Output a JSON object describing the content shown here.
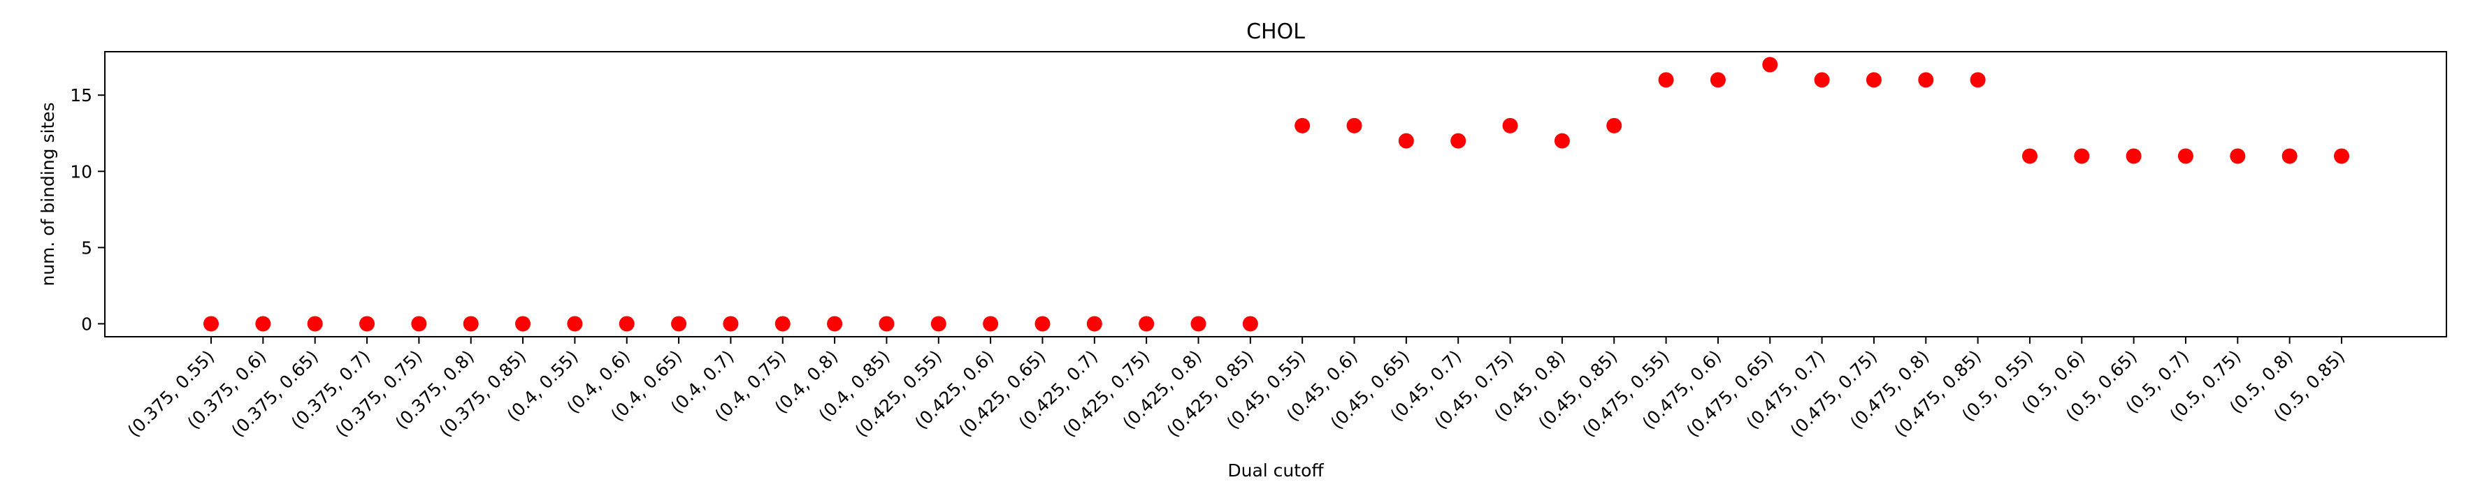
{
  "chart_data": {
    "type": "scatter",
    "title": "CHOL",
    "xlabel": "Dual cutoff",
    "ylabel": "num. of binding sites",
    "categories": [
      "(0.375, 0.55)",
      "(0.375, 0.6)",
      "(0.375, 0.65)",
      "(0.375, 0.7)",
      "(0.375, 0.75)",
      "(0.375, 0.8)",
      "(0.375, 0.85)",
      "(0.4, 0.55)",
      "(0.4, 0.6)",
      "(0.4, 0.65)",
      "(0.4, 0.7)",
      "(0.4, 0.75)",
      "(0.4, 0.8)",
      "(0.4, 0.85)",
      "(0.425, 0.55)",
      "(0.425, 0.6)",
      "(0.425, 0.65)",
      "(0.425, 0.7)",
      "(0.425, 0.75)",
      "(0.425, 0.8)",
      "(0.425, 0.85)",
      "(0.45, 0.55)",
      "(0.45, 0.6)",
      "(0.45, 0.65)",
      "(0.45, 0.7)",
      "(0.45, 0.75)",
      "(0.45, 0.8)",
      "(0.45, 0.85)",
      "(0.475, 0.55)",
      "(0.475, 0.6)",
      "(0.475, 0.65)",
      "(0.475, 0.7)",
      "(0.475, 0.75)",
      "(0.475, 0.8)",
      "(0.475, 0.85)",
      "(0.5, 0.55)",
      "(0.5, 0.6)",
      "(0.5, 0.65)",
      "(0.5, 0.7)",
      "(0.5, 0.75)",
      "(0.5, 0.8)",
      "(0.5, 0.85)"
    ],
    "values": [
      0,
      0,
      0,
      0,
      0,
      0,
      0,
      0,
      0,
      0,
      0,
      0,
      0,
      0,
      0,
      0,
      0,
      0,
      0,
      0,
      0,
      13,
      13,
      12,
      12,
      13,
      12,
      13,
      16,
      16,
      17,
      16,
      16,
      16,
      16,
      11,
      11,
      11,
      11,
      11,
      11,
      11
    ],
    "ylim": [
      -0.85,
      17.85
    ],
    "yticks": [
      0,
      5,
      10,
      15
    ],
    "grid": false,
    "marker_color": "#ff0000"
  }
}
